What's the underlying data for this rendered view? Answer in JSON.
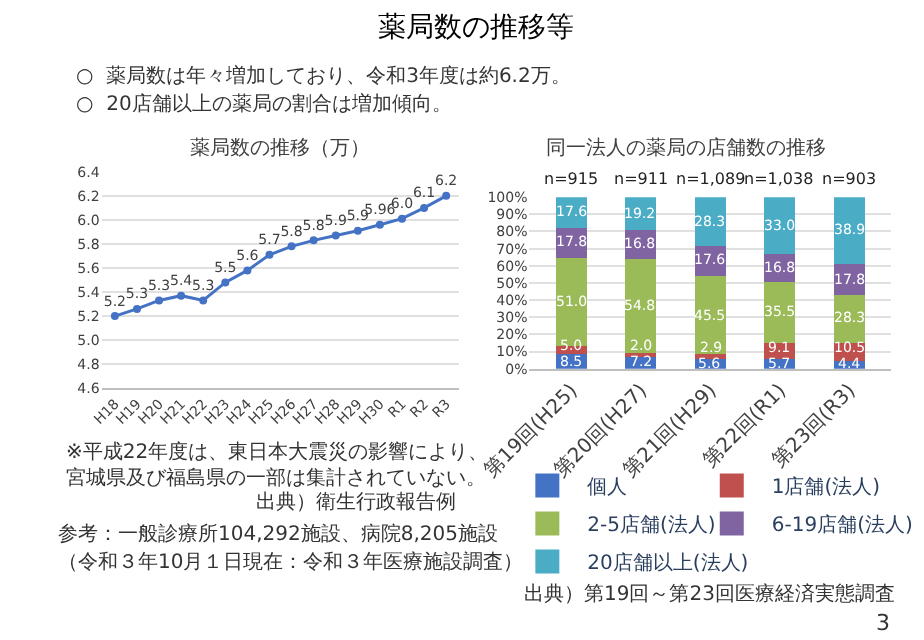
{
  "chart_data": [
    {
      "type": "line",
      "title": "薬局数の推移（万）",
      "categories": [
        "H18",
        "H19",
        "H20",
        "H21",
        "H22",
        "H23",
        "H24",
        "H25",
        "H26",
        "H27",
        "H28",
        "H29",
        "H30",
        "R1",
        "R2",
        "R3"
      ],
      "series": [
        {
          "color": "#4472c4",
          "values": [
            5.2,
            5.26,
            5.33,
            5.37,
            5.33,
            5.48,
            5.58,
            5.71,
            5.78,
            5.83,
            5.87,
            5.91,
            5.96,
            6.01,
            6.1,
            6.2
          ],
          "value_labels": [
            "5.2",
            "5.3",
            "5.3",
            "5.4",
            "5.3",
            "5.5",
            "5.6",
            "5.7",
            "5.8",
            "5.8",
            "5.9",
            "5.9",
            "5.96",
            "6.0",
            "6.1",
            "6.2"
          ]
        }
      ],
      "ylim": [
        4.6,
        6.4
      ],
      "yticks": [
        4.6,
        4.8,
        {
          "value": 5,
          "label": "5.0"
        },
        5.2,
        5.4,
        5.6,
        5.8,
        {
          "value": 6,
          "label": "6.0"
        },
        6.2,
        6.4
      ],
      "grid": "y",
      "marker": "circle",
      "annotations": [
        "薬局数の推移等",
        "○  薬局数は年々増加しており、令和3年度は約6.2万。",
        "○  20店舗以上の薬局の割合は増加傾向。",
        "※平成22年度は、東日本大震災の影響により、宮城県及び福島県の一部は集計されていない。",
        "出典）衛生行政報告例",
        "参考：一般診療所104,292施設、病院8,205施設",
        "（令和３年10月１日現在：令和３年医療施設調査）",
        "3"
      ]
    },
    {
      "type": "bar",
      "stacked": true,
      "title": "同一法人の薬局の店舗数の推移",
      "categories": [
        "第19回(H25)",
        "第20回(H27)",
        "第21回(H29)",
        "第22回(R1)",
        "第23回(R3)"
      ],
      "series": [
        {
          "name": "個人",
          "color": "#4472c4",
          "values": [
            8.5,
            7.2,
            5.6,
            5.7,
            4.4
          ],
          "value_labels": [
            "8.5",
            "7.2",
            "5.6",
            "5.7",
            "4.4"
          ]
        },
        {
          "name": "1店舗(法人)",
          "color": "#c0504d",
          "values": [
            5.0,
            2.0,
            2.9,
            9.1,
            10.5
          ],
          "value_labels": [
            "5.0",
            "2.0",
            "2.9",
            "9.1",
            "10.5"
          ]
        },
        {
          "name": "2-5店舗(法人)",
          "color": "#9bbb59",
          "values": [
            51.0,
            54.8,
            45.5,
            35.5,
            28.3
          ],
          "value_labels": [
            "51.0",
            "54.8",
            "45.5",
            "35.5",
            "28.3"
          ]
        },
        {
          "name": "6-19店舗(法人)",
          "color": "#8064a2",
          "values": [
            17.8,
            16.8,
            17.6,
            16.8,
            17.8
          ],
          "value_labels": [
            "17.8",
            "16.8",
            "17.6",
            "16.8",
            "17.8"
          ]
        },
        {
          "name": "20店舗以上(法人)",
          "color": "#4bacc6",
          "values": [
            17.6,
            19.2,
            28.3,
            33.0,
            38.9
          ],
          "value_labels": [
            "17.6",
            "19.2",
            "28.3",
            "33.0",
            "38.9"
          ]
        }
      ],
      "ylim": [
        0,
        100
      ],
      "yticks": [
        {
          "value": 0,
          "label": "0%"
        },
        {
          "value": 10,
          "label": "10%"
        },
        {
          "value": 20,
          "label": "20%"
        },
        {
          "value": 30,
          "label": "30%"
        },
        {
          "value": 40,
          "label": "40%"
        },
        {
          "value": 50,
          "label": "50%"
        },
        {
          "value": 60,
          "label": "60%"
        },
        {
          "value": 70,
          "label": "70%"
        },
        {
          "value": 80,
          "label": "80%"
        },
        {
          "value": 90,
          "label": "90%"
        },
        {
          "value": 100,
          "label": "100%"
        }
      ],
      "grid": "y",
      "legend": "bottom",
      "annotations": [
        {
          "text": "n=915",
          "x": "第19回(H25)",
          "y": 100
        },
        {
          "text": "n=911",
          "x": "第20回(H27)",
          "y": 100
        },
        {
          "text": "n=1,089",
          "x": "第21回(H29)",
          "y": 100
        },
        {
          "text": "n=1,038",
          "x": "第22回(R1)",
          "y": 100
        },
        {
          "text": "n=903",
          "x": "第23回(R3)",
          "y": 100
        },
        "出典）第19回～第23回医療経済実態調査"
      ]
    }
  ]
}
